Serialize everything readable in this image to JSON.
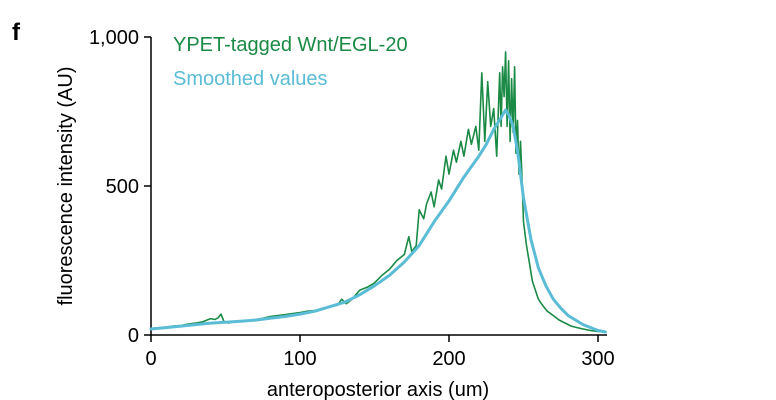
{
  "panel_label": "f",
  "chart_data": {
    "type": "line",
    "title": "",
    "xlabel": "anteroposterior axis (um)",
    "ylabel": "fluorescence intensity (AU)",
    "xlim": [
      0,
      307
    ],
    "ylim": [
      0,
      1000
    ],
    "xticks": [
      0,
      100,
      200,
      300
    ],
    "xtick_labels": [
      "0",
      "100",
      "200",
      "300"
    ],
    "yticks": [
      0,
      500,
      1000
    ],
    "ytick_labels": [
      "0",
      "500",
      "1,000"
    ],
    "grid": false,
    "legend_position": "top-left",
    "series": [
      {
        "name": "YPET-tagged Wnt/EGL-20",
        "color": "#1a8a45",
        "x": [
          0,
          5,
          10,
          15,
          20,
          25,
          30,
          35,
          40,
          43,
          45,
          47,
          49,
          52,
          55,
          60,
          65,
          70,
          75,
          80,
          85,
          90,
          95,
          100,
          105,
          110,
          115,
          120,
          125,
          128,
          131,
          135,
          140,
          145,
          150,
          155,
          160,
          165,
          170,
          173,
          175,
          178,
          180,
          183,
          185,
          188,
          190,
          193,
          195,
          198,
          200,
          203,
          205,
          208,
          210,
          213,
          215,
          218,
          220,
          222,
          224,
          226,
          228,
          230,
          232,
          234,
          235,
          236,
          237,
          238,
          239,
          240,
          241,
          242,
          243,
          244,
          245,
          246,
          247,
          248,
          249,
          250,
          252,
          254,
          256,
          258,
          260,
          263,
          266,
          270,
          274,
          278,
          282,
          286,
          290,
          295,
          300,
          305
        ],
        "y": [
          22,
          24,
          26,
          30,
          32,
          37,
          40,
          45,
          55,
          52,
          58,
          70,
          45,
          40,
          44,
          46,
          48,
          52,
          56,
          62,
          65,
          68,
          72,
          75,
          80,
          82,
          90,
          95,
          100,
          120,
          105,
          120,
          150,
          160,
          175,
          200,
          220,
          250,
          270,
          330,
          280,
          300,
          420,
          390,
          440,
          480,
          430,
          520,
          490,
          600,
          540,
          620,
          580,
          650,
          600,
          690,
          640,
          700,
          620,
          880,
          650,
          850,
          700,
          760,
          600,
          880,
          700,
          900,
          800,
          950,
          700,
          920,
          650,
          860,
          680,
          900,
          610,
          720,
          540,
          650,
          530,
          380,
          300,
          240,
          180,
          150,
          120,
          98,
          80,
          65,
          50,
          40,
          30,
          25,
          20,
          15,
          12,
          10
        ]
      },
      {
        "name": "Smoothed values",
        "color": "#5bbcd6",
        "x": [
          0,
          10,
          20,
          30,
          40,
          50,
          60,
          70,
          80,
          90,
          100,
          110,
          120,
          130,
          140,
          150,
          160,
          170,
          180,
          190,
          200,
          210,
          220,
          225,
          230,
          235,
          238,
          240,
          243,
          246,
          250,
          255,
          260,
          265,
          270,
          275,
          280,
          290,
          300,
          305
        ],
        "y": [
          20,
          25,
          30,
          35,
          40,
          43,
          46,
          50,
          56,
          62,
          70,
          80,
          95,
          110,
          135,
          165,
          200,
          245,
          300,
          380,
          450,
          530,
          600,
          640,
          690,
          730,
          755,
          740,
          700,
          620,
          460,
          320,
          225,
          165,
          120,
          90,
          65,
          35,
          15,
          10
        ]
      }
    ]
  }
}
